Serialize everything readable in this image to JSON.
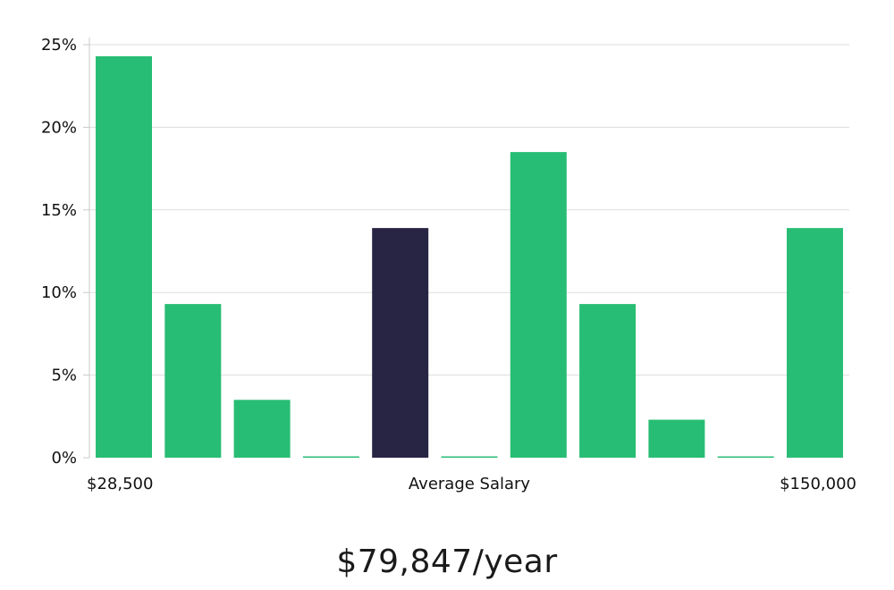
{
  "headline": "$79,847/year",
  "colors": {
    "bar": "#28bd74",
    "highlight": "#282443",
    "grid": "#dddddd",
    "axis": "#c9c9c9",
    "text": "#111111"
  },
  "chart_data": {
    "type": "bar",
    "title": "",
    "xlabel": "Average Salary",
    "ylabel": "",
    "x_tick_labels": {
      "left": "$28,500",
      "right": "$150,000"
    },
    "categories": [
      "1",
      "2",
      "3",
      "4",
      "5",
      "6",
      "7",
      "8",
      "9",
      "10",
      "11"
    ],
    "values": [
      24.3,
      9.3,
      3.5,
      0,
      13.9,
      0,
      18.5,
      9.3,
      2.3,
      0,
      13.9
    ],
    "highlight_index": 4,
    "ylim": [
      0,
      25
    ],
    "y_ticks": [
      "0%",
      "5%",
      "10%",
      "15%",
      "20%",
      "25%"
    ],
    "y_tick_values": [
      0,
      5,
      10,
      15,
      20,
      25
    ],
    "grid": true,
    "legend": "none"
  }
}
